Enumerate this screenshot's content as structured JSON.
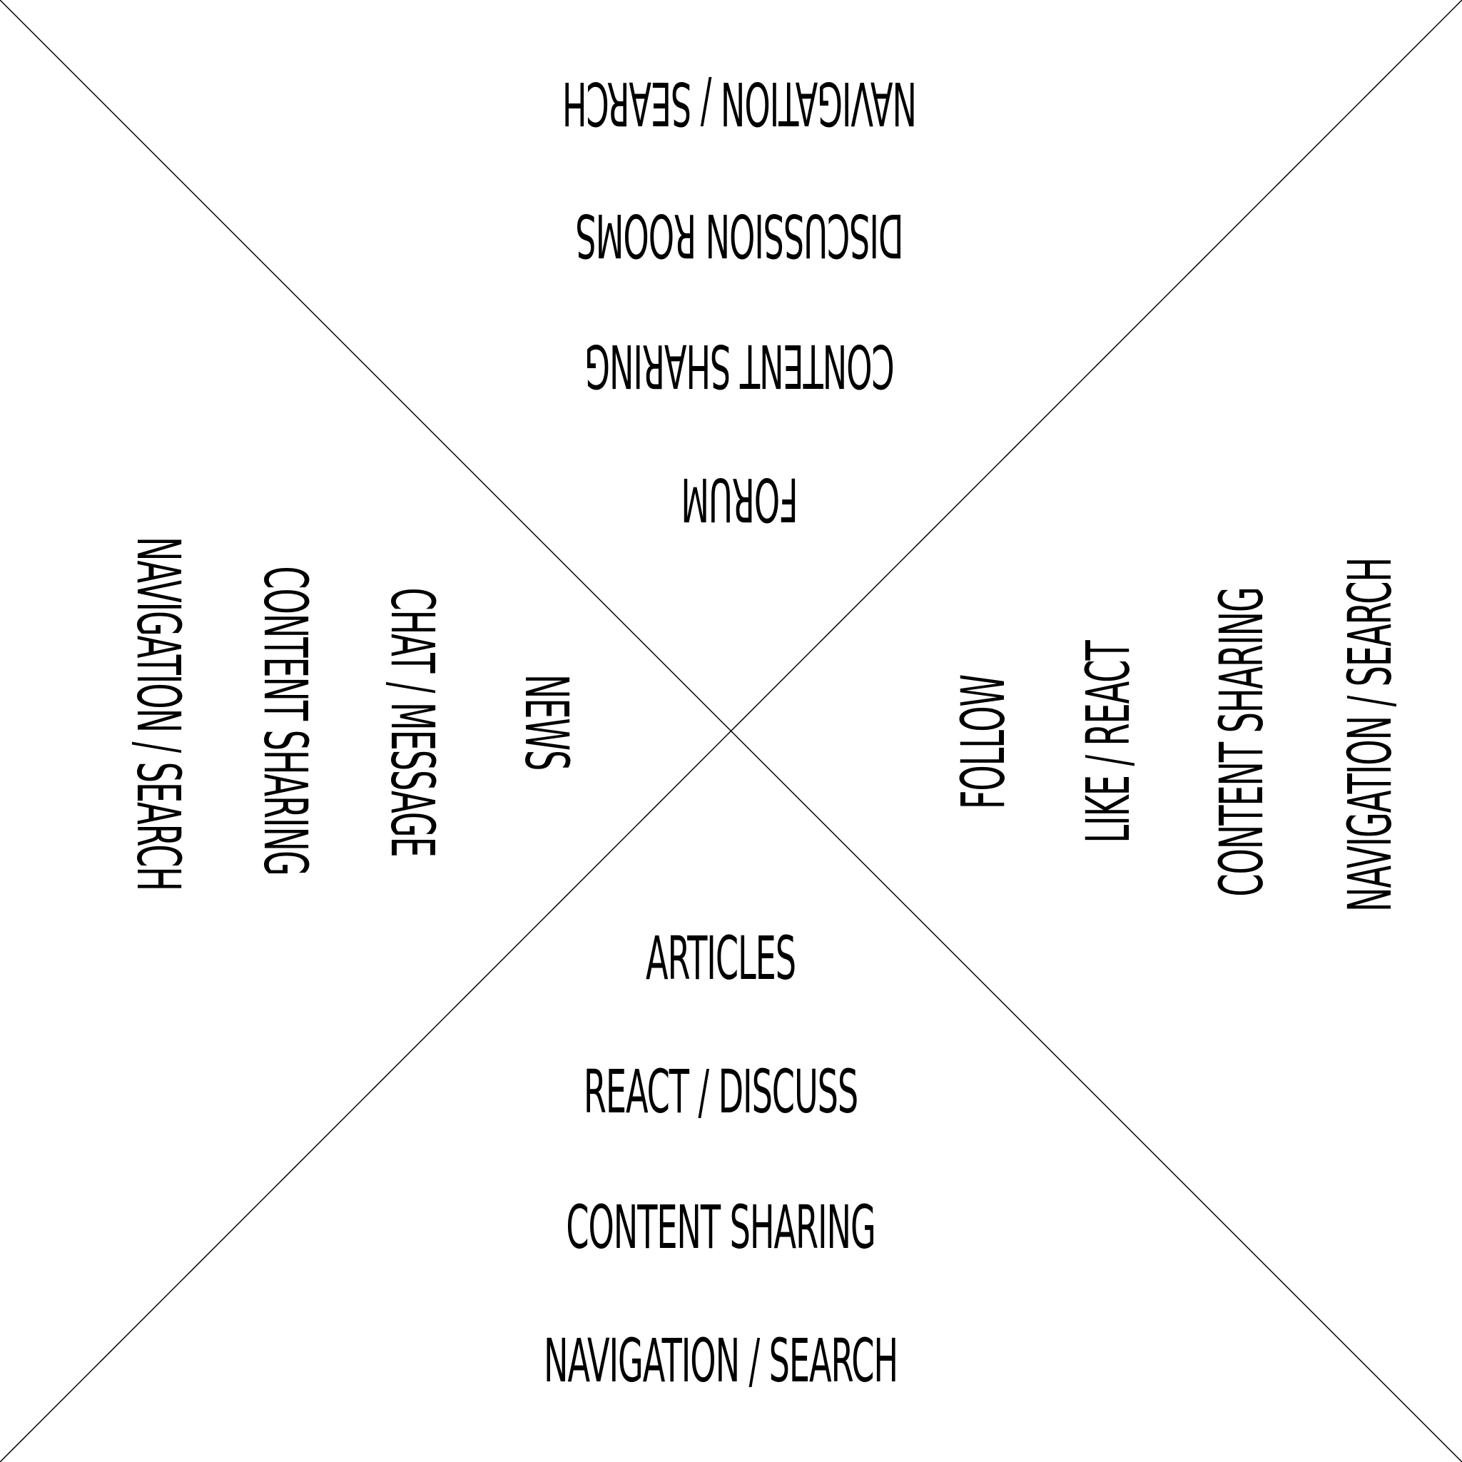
{
  "diagram": {
    "top": [
      "NAVIGATION / SEARCH",
      "DISCUSSION ROOMS",
      "CONTENT SHARING",
      "FORUM"
    ],
    "left": [
      "NAVIGATION / SEARCH",
      "CONTENT SHARING",
      "CHAT / MESSAGE",
      "NEWS"
    ],
    "right": [
      "FOLLOW",
      "LIKE / REACT",
      "CONTENT SHARING",
      "NAVIGATION / SEARCH"
    ],
    "bottom": [
      "ARTICLES",
      "REACT / DISCUSS",
      "CONTENT SHARING",
      "NAVIGATION / SEARCH"
    ]
  },
  "colors": {
    "line": "#000000",
    "text": "#000000",
    "background": "#ffffff"
  }
}
